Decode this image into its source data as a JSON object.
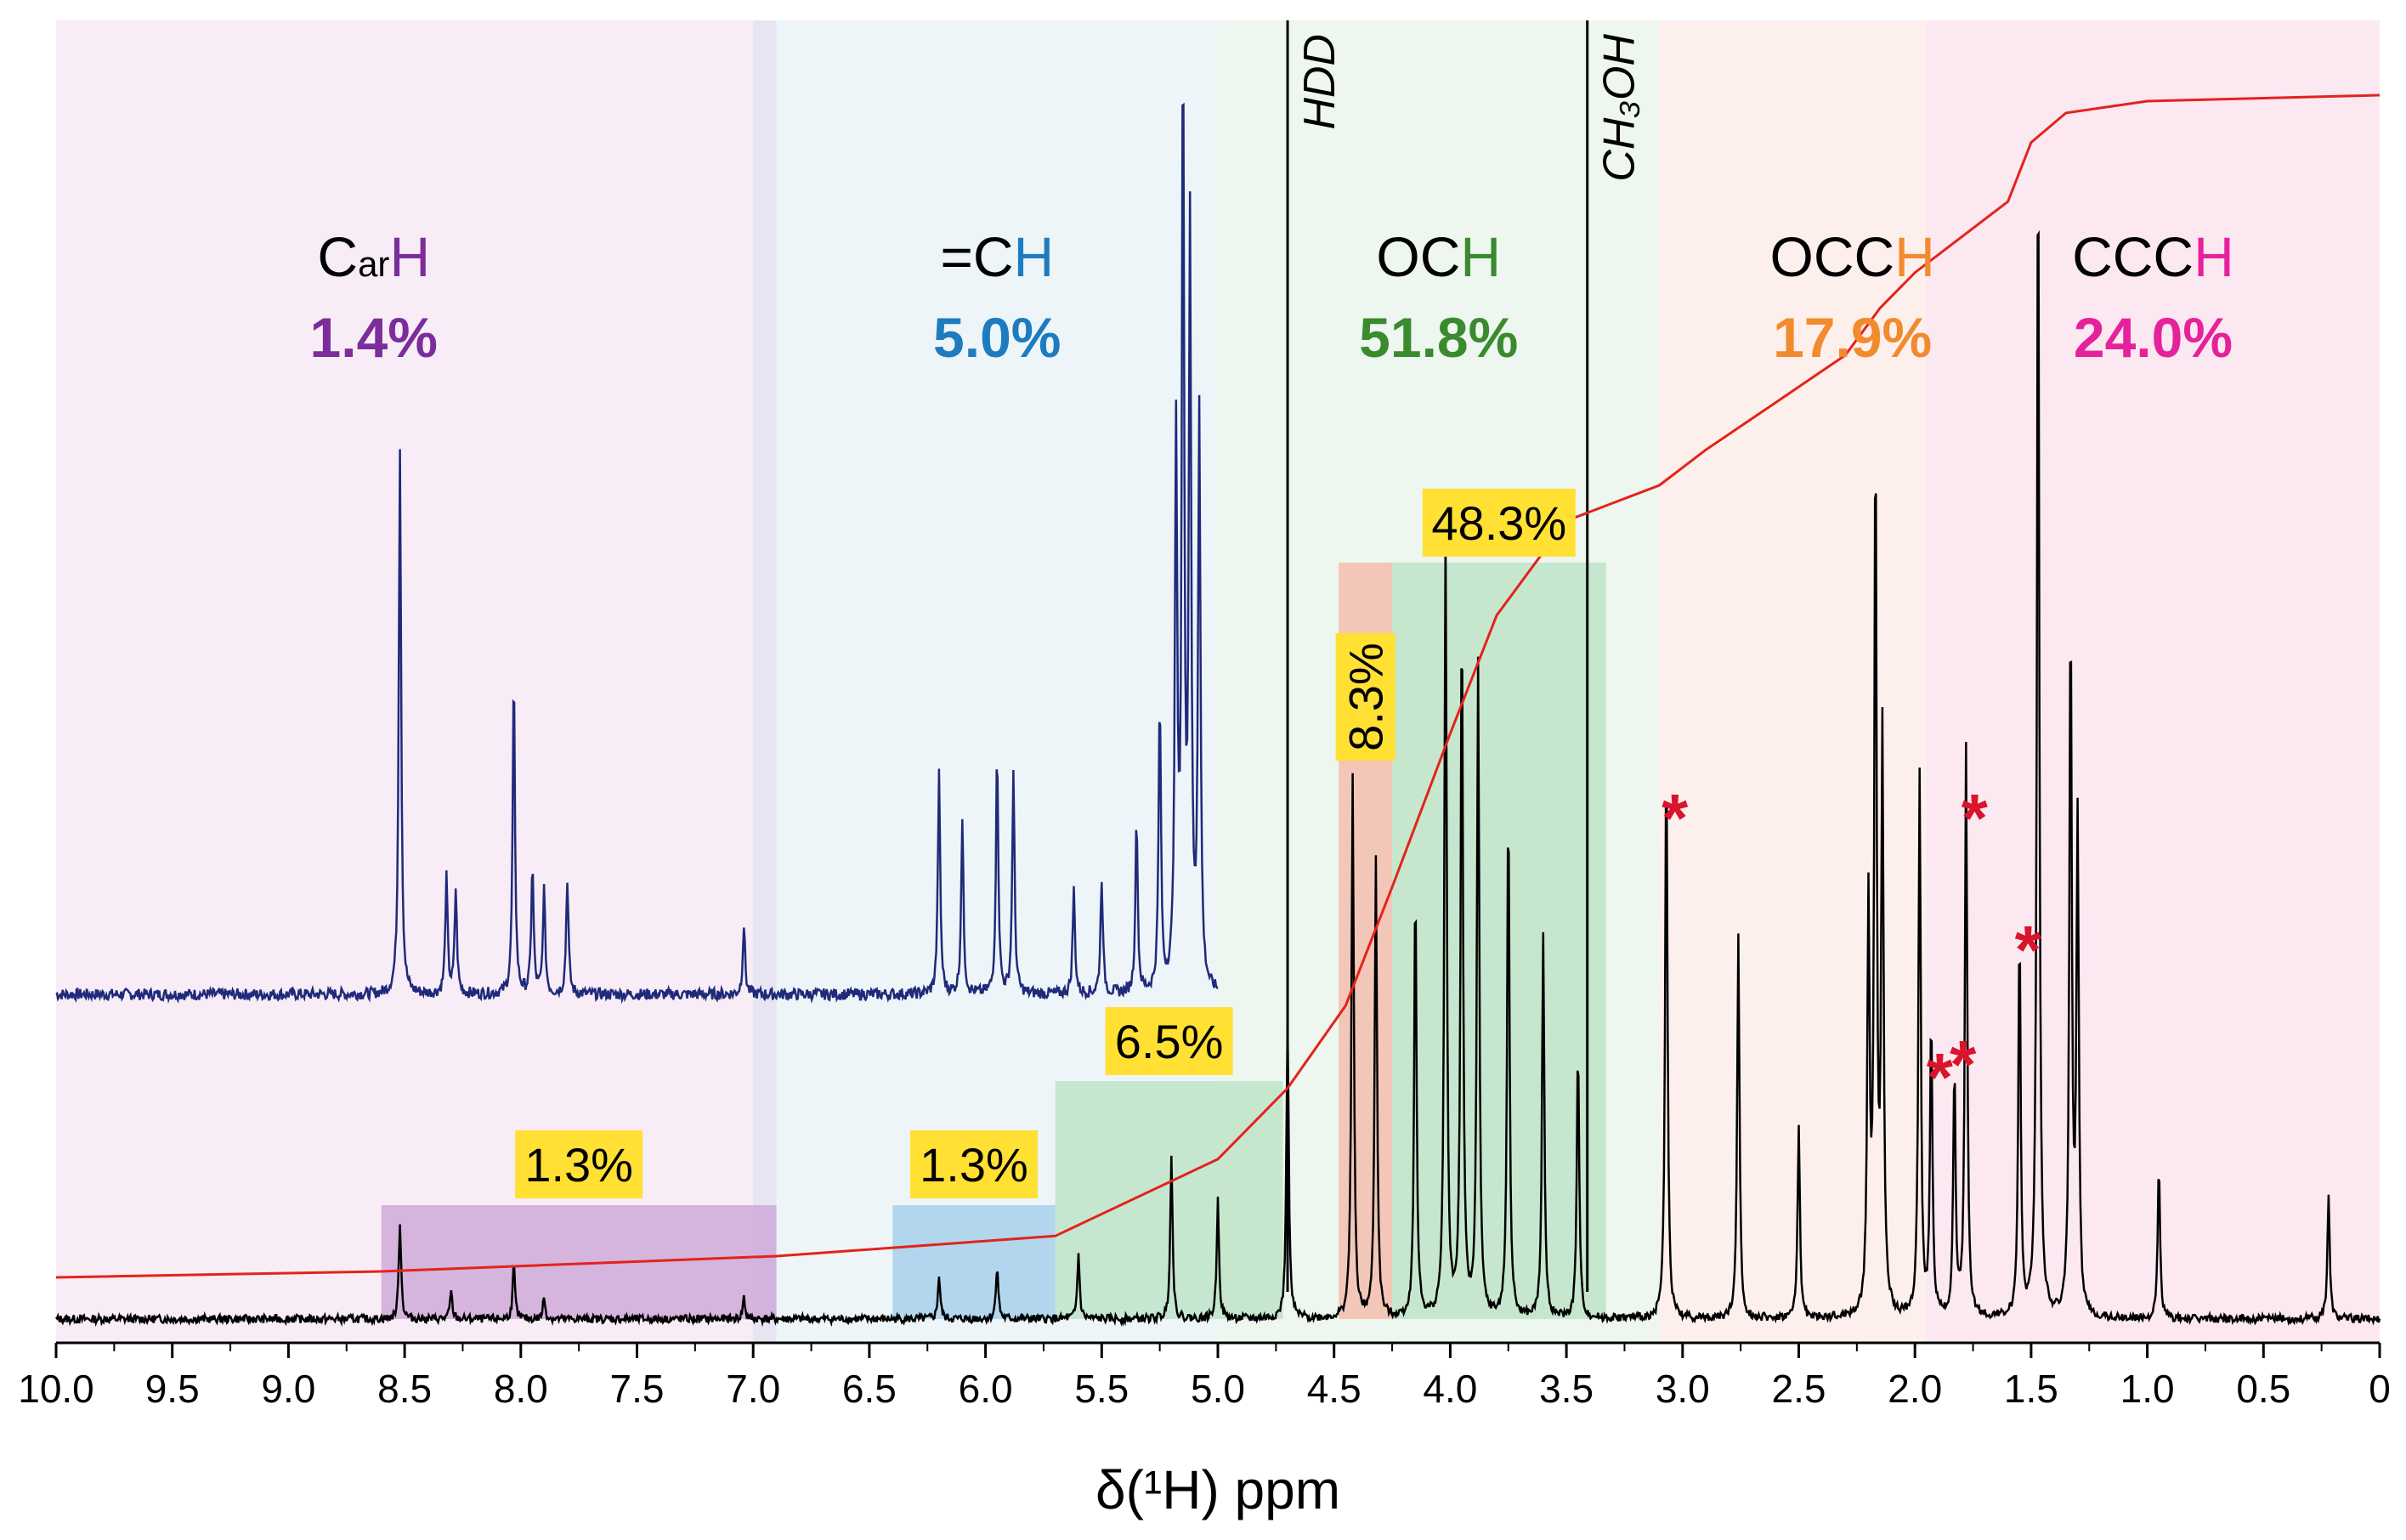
{
  "chart_data": {
    "type": "line",
    "title": "",
    "xlabel": "δ(¹H) ppm",
    "ylabel": "",
    "xlim": [
      10.0,
      0.0
    ],
    "x_reversed": true,
    "xticks": [
      "10.0",
      "9.5",
      "9.0",
      "8.5",
      "8.0",
      "7.5",
      "7.0",
      "6.5",
      "6.0",
      "5.5",
      "5.0",
      "4.5",
      "4.0",
      "3.5",
      "3.0",
      "2.5",
      "2.0",
      "1.5",
      "1.0",
      "0.5",
      "0"
    ],
    "regions": [
      {
        "id": "carh",
        "title_prefix": "C",
        "title_sub": "ar",
        "title_h": "H",
        "percent": "1.4%",
        "color": "#7b2d9c",
        "bg": "#f8ecf6",
        "from": 10.0,
        "to": 6.9
      },
      {
        "id": "ch",
        "title_prefix": "=C",
        "title_sub": "",
        "title_h": "H",
        "percent": "5.0%",
        "color": "#1c7cbf",
        "bg": "#eef5f8",
        "from": 6.9,
        "to": 5.0
      },
      {
        "id": "och",
        "title_prefix": "OC",
        "title_sub": "",
        "title_h": "H",
        "percent": "51.8%",
        "color": "#3a8a2e",
        "bg": "#eef6f0",
        "from": 5.0,
        "to": 3.1
      },
      {
        "id": "occh",
        "title_prefix": "OCC",
        "title_sub": "",
        "title_h": "H",
        "percent": "17.9%",
        "color": "#f28a2e",
        "bg": "#fdf0ec",
        "from": 3.1,
        "to": 1.95
      },
      {
        "id": "ccch",
        "title_prefix": "CCC",
        "title_sub": "",
        "title_h": "H",
        "percent": "24.0%",
        "color": "#e5229b",
        "bg": "#fbe8f1",
        "from": 1.95,
        "to": 0.0
      }
    ],
    "integration_boxes": [
      {
        "label": "1.3%",
        "from": 8.6,
        "to": 6.9,
        "color": "#c9a2d6"
      },
      {
        "label": "1.3%",
        "from": 6.4,
        "to": 5.7,
        "color": "#9ecbe9"
      },
      {
        "label": "6.5%",
        "from": 5.7,
        "to": 4.72,
        "color": "#b8e2c2"
      },
      {
        "label": "8.3%",
        "from": 4.48,
        "to": 4.25,
        "color": "#f4b7a5"
      },
      {
        "label": "48.3%",
        "from": 4.25,
        "to": 3.33,
        "color": "#b8e2c2"
      }
    ],
    "reference_lines": [
      {
        "label": "HDD",
        "x": 4.7
      },
      {
        "label": "CH₃OH",
        "x": 3.41
      }
    ],
    "starred_peaks": [
      3.07,
      1.93,
      1.83,
      1.78,
      1.55
    ],
    "series": [
      {
        "name": "Upper spectrum (blue)",
        "color": "#1f2a7a",
        "peaks": [
          [
            8.52,
            0.95
          ],
          [
            8.32,
            0.2
          ],
          [
            8.28,
            0.18
          ],
          [
            8.03,
            0.55
          ],
          [
            7.95,
            0.22
          ],
          [
            7.9,
            0.18
          ],
          [
            7.8,
            0.2
          ],
          [
            7.04,
            0.12
          ],
          [
            6.2,
            0.38
          ],
          [
            6.1,
            0.3
          ],
          [
            5.95,
            0.42
          ],
          [
            5.88,
            0.38
          ],
          [
            5.62,
            0.18
          ],
          [
            5.5,
            0.2
          ],
          [
            5.35,
            0.3
          ],
          [
            5.25,
            0.5
          ],
          [
            5.18,
            0.95
          ],
          [
            5.15,
            1.6
          ],
          [
            5.12,
            1.3
          ],
          [
            5.08,
            1.0
          ]
        ]
      },
      {
        "name": "Lower spectrum (black)",
        "color": "#000000",
        "peaks": [
          [
            8.52,
            0.18
          ],
          [
            8.3,
            0.05
          ],
          [
            8.03,
            0.1
          ],
          [
            7.9,
            0.04
          ],
          [
            7.04,
            0.04
          ],
          [
            6.2,
            0.08
          ],
          [
            5.95,
            0.1
          ],
          [
            5.6,
            0.12
          ],
          [
            5.2,
            0.3
          ],
          [
            5.0,
            0.22
          ],
          [
            4.7,
            0.55
          ],
          [
            4.42,
            1.0
          ],
          [
            4.32,
            0.85
          ],
          [
            4.15,
            0.8
          ],
          [
            4.02,
            1.45
          ],
          [
            3.95,
            1.3
          ],
          [
            3.88,
            1.2
          ],
          [
            3.75,
            0.95
          ],
          [
            3.6,
            0.7
          ],
          [
            3.45,
            0.5
          ],
          [
            3.07,
            1.05
          ],
          [
            2.76,
            0.7
          ],
          [
            2.5,
            0.35
          ],
          [
            2.2,
            0.75
          ],
          [
            2.17,
            1.6
          ],
          [
            2.14,
            1.05
          ],
          [
            1.98,
            1.0
          ],
          [
            1.93,
            0.55
          ],
          [
            1.83,
            0.45
          ],
          [
            1.78,
            1.05
          ],
          [
            1.55,
            0.7
          ],
          [
            1.47,
            2.2
          ],
          [
            1.33,
            1.3
          ],
          [
            1.3,
            0.9
          ],
          [
            0.95,
            0.28
          ],
          [
            0.22,
            0.23
          ]
        ]
      },
      {
        "name": "Integral curve (red)",
        "color": "#e3231b",
        "cumulative": [
          [
            10.0,
            0.0
          ],
          [
            8.6,
            0.005
          ],
          [
            6.9,
            0.018
          ],
          [
            5.7,
            0.035
          ],
          [
            5.0,
            0.1
          ],
          [
            4.7,
            0.16
          ],
          [
            4.45,
            0.23
          ],
          [
            4.25,
            0.33
          ],
          [
            4.0,
            0.46
          ],
          [
            3.8,
            0.56
          ],
          [
            3.5,
            0.64
          ],
          [
            3.3,
            0.655
          ],
          [
            3.1,
            0.67
          ],
          [
            2.9,
            0.7
          ],
          [
            2.6,
            0.74
          ],
          [
            2.3,
            0.78
          ],
          [
            2.15,
            0.82
          ],
          [
            2.0,
            0.85
          ],
          [
            1.8,
            0.88
          ],
          [
            1.6,
            0.91
          ],
          [
            1.5,
            0.96
          ],
          [
            1.35,
            0.985
          ],
          [
            1.0,
            0.995
          ],
          [
            0.0,
            1.0
          ]
        ]
      }
    ]
  }
}
